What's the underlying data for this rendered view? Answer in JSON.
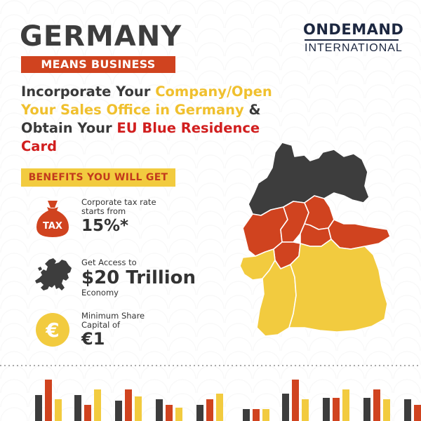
{
  "header": {
    "title": "GERMANY",
    "subtitle": "MEANS BUSINESS"
  },
  "logo": {
    "top": "ONDEMAND",
    "bottom": "INTERNATIONAL"
  },
  "headline": {
    "p1": "Incorporate Your ",
    "p2": "Company/Open Your Sales Office in Germany",
    "p3": " & Obtain Your ",
    "p4": "EU Blue Residence Card"
  },
  "benefits": {
    "heading": "BENEFITS YOU WILL GET",
    "items": [
      {
        "icon": "tax-bag-icon",
        "icon_text": "TAX",
        "line1": "Corporate tax rate",
        "line2": "starts from",
        "value": "15%*",
        "line3": ""
      },
      {
        "icon": "europe-map-icon",
        "line1": "Get Access to",
        "value": "$20 Trillion",
        "line3": "Economy"
      },
      {
        "icon": "euro-coin-icon",
        "icon_text": "€",
        "line1": "Minimum Share",
        "line2": "Capital of",
        "value": "€1"
      }
    ]
  },
  "colors": {
    "red": "#d0431f",
    "yellow": "#f2cb3f",
    "dark": "#3d3d3d",
    "brand": "#1c2740"
  }
}
